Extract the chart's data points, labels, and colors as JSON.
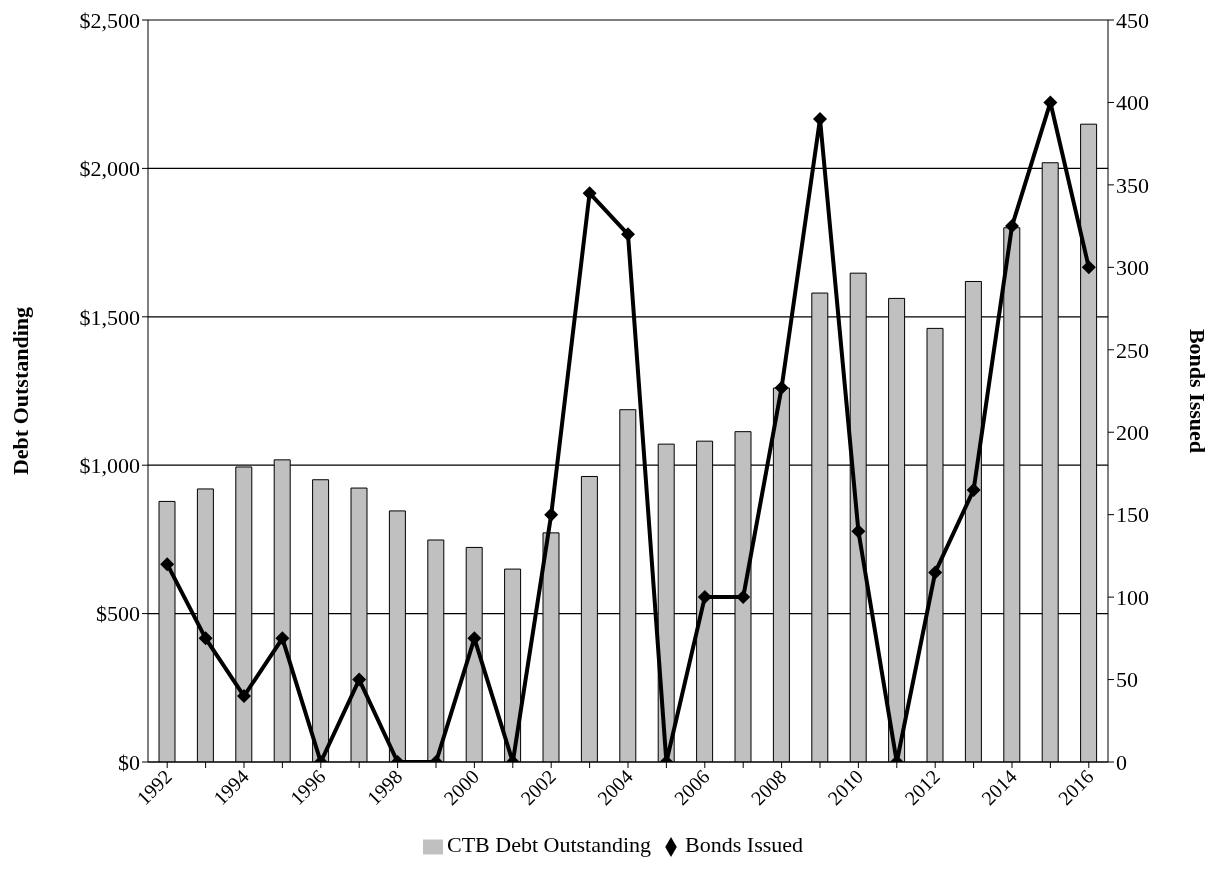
{
  "chart_data": {
    "type": "bar",
    "categories": [
      "1992",
      null,
      "1994",
      null,
      "1996",
      null,
      "1998",
      null,
      "2000",
      null,
      "2002",
      null,
      "2004",
      null,
      "2006",
      null,
      "2008",
      null,
      "2010",
      null,
      "2012",
      null,
      "2014",
      null,
      "2016"
    ],
    "ylabel": "Debt Outstanding",
    "y2label": "Bonds Issued",
    "series": [
      {
        "name": "CTB Debt Outstanding",
        "color": "#c0c0c0",
        "values": [
          878,
          920,
          994,
          1018,
          951,
          923,
          846,
          748,
          723,
          650,
          772,
          962,
          1187,
          1071,
          1081,
          1113,
          1260,
          1580,
          1647,
          1562,
          1461,
          1619,
          1800,
          2019,
          2149
        ]
      },
      {
        "name": "Bonds Issued",
        "type": "line",
        "axis": "y2",
        "color": "#000000",
        "marker": "diamond",
        "line_style": "solid",
        "values": [
          120,
          75,
          40,
          75,
          0,
          50,
          0,
          0,
          75,
          0,
          150,
          345,
          320,
          0,
          100,
          100,
          227,
          390,
          140,
          0,
          115,
          165,
          325,
          400,
          300
        ]
      }
    ],
    "ylim": [
      0,
      2500
    ],
    "yticks": [
      {
        "value": 0,
        "label": "$0"
      },
      {
        "value": 500,
        "label": "$500"
      },
      {
        "value": 1000,
        "label": "$1,000"
      },
      {
        "value": 1500,
        "label": "$1,500"
      },
      {
        "value": 2000,
        "label": "$2,000"
      },
      {
        "value": 2500,
        "label": "$2,500"
      }
    ],
    "y2lim": [
      0,
      450
    ],
    "y2ticks": [
      0,
      50,
      100,
      150,
      200,
      250,
      300,
      350,
      400,
      450
    ],
    "grid": "y",
    "legend": "bottom"
  }
}
